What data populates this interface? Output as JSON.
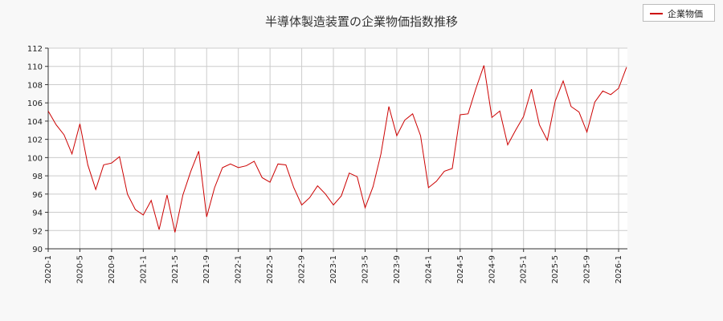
{
  "chart_data": {
    "type": "line",
    "title": "半導体製造装置の企業物価指数推移",
    "xlabel": "",
    "ylabel": "",
    "ylim": [
      90,
      112
    ],
    "yticks": [
      90,
      92,
      94,
      96,
      98,
      100,
      102,
      104,
      106,
      108,
      110,
      112
    ],
    "xticks": [
      "2020-1",
      "2020-5",
      "2020-9",
      "2021-1",
      "2021-5",
      "2021-9",
      "2022-1",
      "2022-5",
      "2022-9",
      "2023-1",
      "2023-5",
      "2023-9",
      "2024-1",
      "2024-5",
      "2024-9",
      "2025-1",
      "2025-5",
      "2025-9",
      "2026-1"
    ],
    "grid": true,
    "legend_position": "top-right",
    "color": "#cc0000",
    "series": [
      {
        "name": "企業物価",
        "x": [
          "2020-1",
          "2020-2",
          "2020-3",
          "2020-4",
          "2020-5",
          "2020-6",
          "2020-7",
          "2020-8",
          "2020-9",
          "2020-10",
          "2020-11",
          "2020-12",
          "2021-1",
          "2021-2",
          "2021-3",
          "2021-4",
          "2021-5",
          "2021-6",
          "2021-7",
          "2021-8",
          "2021-9",
          "2021-10",
          "2021-11",
          "2021-12",
          "2022-1",
          "2022-2",
          "2022-3",
          "2022-4",
          "2022-5",
          "2022-6",
          "2022-7",
          "2022-8",
          "2022-9",
          "2022-10",
          "2022-11",
          "2022-12",
          "2023-1",
          "2023-2",
          "2023-3",
          "2023-4",
          "2023-5",
          "2023-6",
          "2023-7",
          "2023-8",
          "2023-9",
          "2023-10",
          "2023-11",
          "2023-12",
          "2024-1",
          "2024-2",
          "2024-3",
          "2024-4",
          "2024-5",
          "2024-6",
          "2024-7",
          "2024-8",
          "2024-9",
          "2024-10",
          "2024-11",
          "2024-12",
          "2025-1",
          "2025-2",
          "2025-3",
          "2025-4",
          "2025-5",
          "2025-6",
          "2025-7",
          "2025-8",
          "2025-9",
          "2025-10",
          "2025-11",
          "2025-12",
          "2026-1",
          "2026-2"
        ],
        "values": [
          105.1,
          103.6,
          102.5,
          100.4,
          103.7,
          99.2,
          96.5,
          99.2,
          99.4,
          100.1,
          96.0,
          94.3,
          93.7,
          95.3,
          92.1,
          95.9,
          91.8,
          95.9,
          98.5,
          100.7,
          93.5,
          96.7,
          98.9,
          99.3,
          98.9,
          99.1,
          99.6,
          97.8,
          97.3,
          99.3,
          99.2,
          96.7,
          94.8,
          95.6,
          96.9,
          96.0,
          94.8,
          95.8,
          98.3,
          97.9,
          94.5,
          96.8,
          100.4,
          105.6,
          102.4,
          104.1,
          104.8,
          102.4,
          96.7,
          97.4,
          98.5,
          98.8,
          104.7,
          104.8,
          107.6,
          110.1,
          104.4,
          105.1,
          101.4,
          103.0,
          104.5,
          107.5,
          103.6,
          101.9,
          106.2,
          108.4,
          105.6,
          105.0,
          102.8,
          106.1,
          107.3,
          106.9,
          107.6,
          109.9
        ]
      }
    ]
  }
}
